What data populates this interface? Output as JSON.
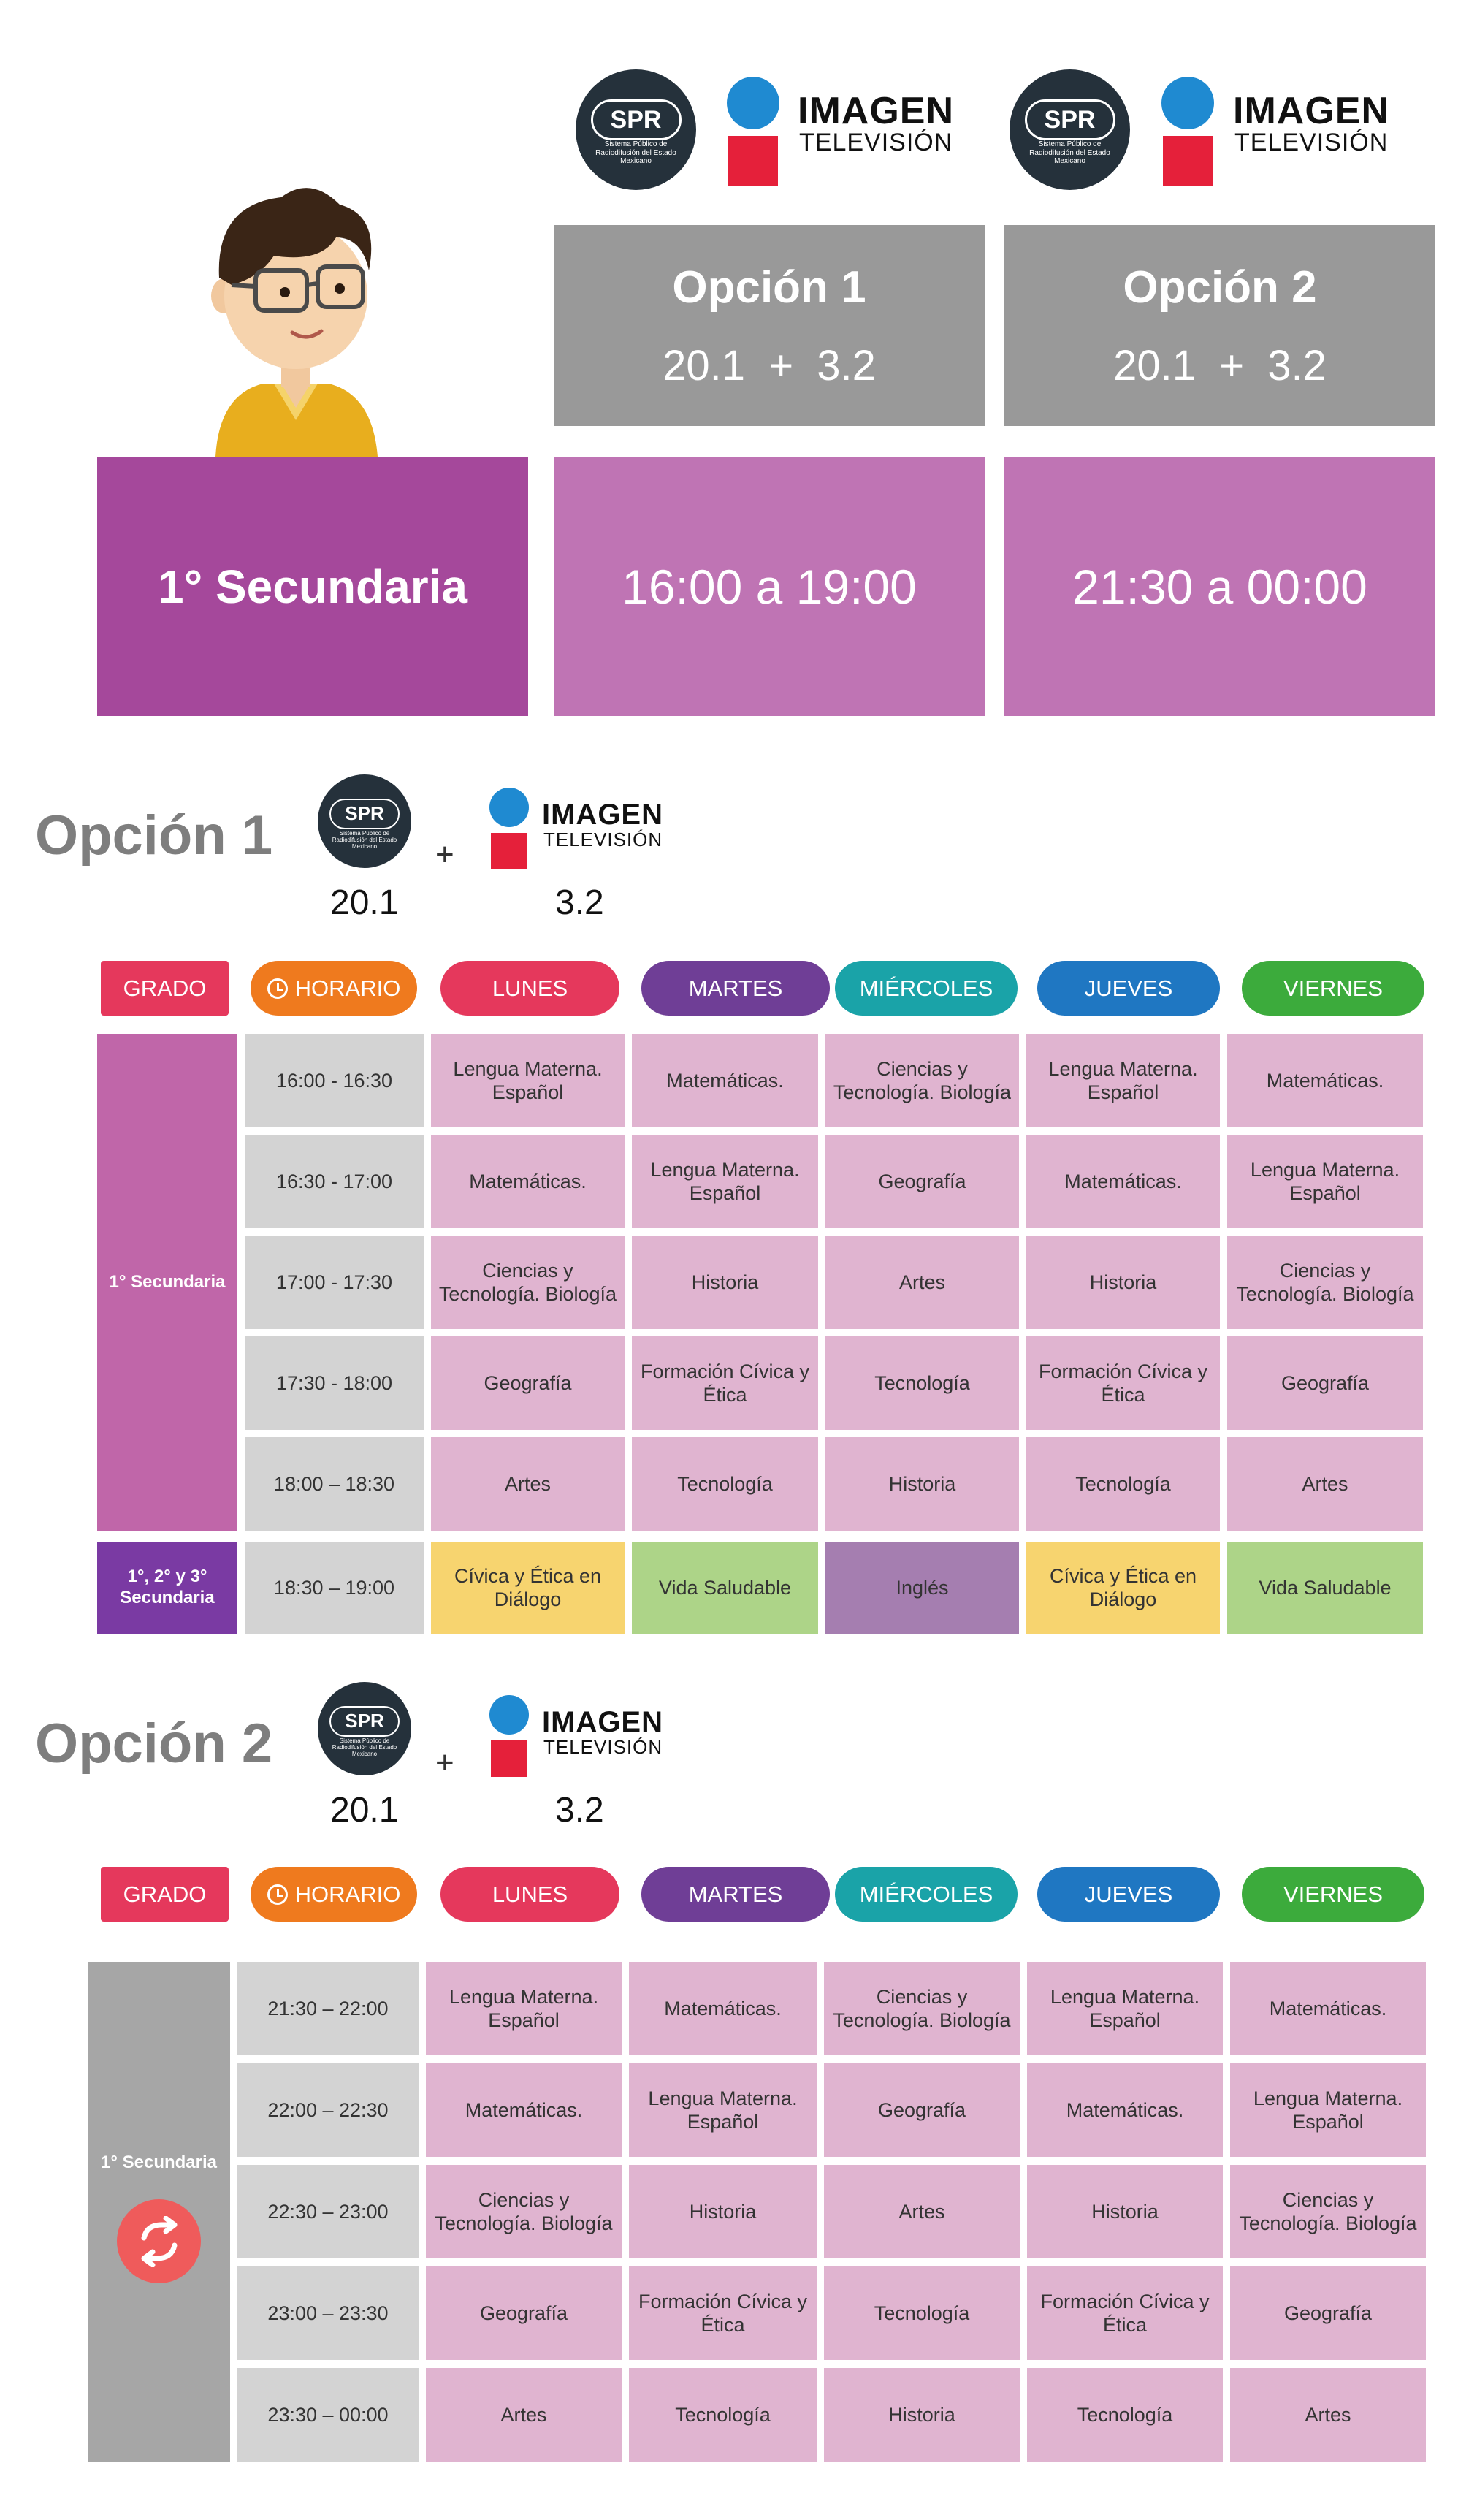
{
  "header": {
    "logos": {
      "spr": {
        "letters": "SPR",
        "subtitle": "Sistema Público de Radiodifusión del Estado Mexicano"
      },
      "imagen": {
        "title": "IMAGEN",
        "subtitle": "TELEVISIÓN"
      }
    },
    "options": [
      {
        "label": "Opción 1",
        "channels": "20.1  +  3.2",
        "time": "16:00 a 19:00"
      },
      {
        "label": "Opción 2",
        "channels": "20.1  +  3.2",
        "time": "21:30 a 00:00"
      }
    ],
    "grade": "1° Secundaria"
  },
  "labels": {
    "grado": "GRADO",
    "horario": "HORARIO",
    "plus": "+"
  },
  "days": [
    "LUNES",
    "MARTES",
    "MIÉRCOLES",
    "JUEVES",
    "VIERNES"
  ],
  "colors": {
    "grado": "#e5385c",
    "horario": "#ef7a1e",
    "days": [
      "#e5385c",
      "#6f3e96",
      "#1aa3a8",
      "#1f77c2",
      "#3cab3c"
    ]
  },
  "option1": {
    "title": "Opción 1",
    "channel_a": "20.1",
    "channel_b": "3.2",
    "grade_label": "1° Secundaria",
    "rows": [
      {
        "time": "16:00 - 16:30",
        "cells": [
          "Lengua Materna. Español",
          "Matemáticas.",
          "Ciencias y Tecnología. Biología",
          "Lengua Materna. Español",
          "Matemáticas."
        ]
      },
      {
        "time": "16:30 - 17:00",
        "cells": [
          "Matemáticas.",
          "Lengua Materna. Español",
          "Geografía",
          "Matemáticas.",
          "Lengua Materna. Español"
        ]
      },
      {
        "time": "17:00 - 17:30",
        "cells": [
          "Ciencias y Tecnología. Biología",
          "Historia",
          "Artes",
          "Historia",
          "Ciencias y Tecnología. Biología"
        ]
      },
      {
        "time": "17:30 - 18:00",
        "cells": [
          "Geografía",
          "Formación Cívica y Ética",
          "Tecnología",
          "Formación Cívica y Ética",
          "Geografía"
        ]
      },
      {
        "time": "18:00 – 18:30",
        "cells": [
          "Artes",
          "Tecnología",
          "Historia",
          "Tecnología",
          "Artes"
        ]
      }
    ],
    "extra_row": {
      "grade_label": "1°, 2° y 3° Secundaria",
      "time": "18:30 – 19:00",
      "cells": [
        "Cívica y Ética en Diálogo",
        "Vida Saludable",
        "Inglés",
        "Cívica y Ética en Diálogo",
        "Vida Saludable"
      ]
    }
  },
  "option2": {
    "title": "Opción 2",
    "channel_a": "20.1",
    "channel_b": "3.2",
    "grade_label": "1° Secundaria",
    "rows": [
      {
        "time": "21:30 – 22:00",
        "cells": [
          "Lengua Materna. Español",
          "Matemáticas.",
          "Ciencias y Tecnología. Biología",
          "Lengua Materna. Español",
          "Matemáticas."
        ]
      },
      {
        "time": "22:00 – 22:30",
        "cells": [
          "Matemáticas.",
          "Lengua Materna. Español",
          "Geografía",
          "Matemáticas.",
          "Lengua Materna. Español"
        ]
      },
      {
        "time": "22:30 – 23:00",
        "cells": [
          "Ciencias y Tecnología. Biología",
          "Historia",
          "Artes",
          "Historia",
          "Ciencias y Tecnología. Biología"
        ]
      },
      {
        "time": "23:00 – 23:30",
        "cells": [
          "Geografía",
          "Formación Cívica y Ética",
          "Tecnología",
          "Formación Cívica y Ética",
          "Geografía"
        ]
      },
      {
        "time": "23:30 – 00:00",
        "cells": [
          "Artes",
          "Tecnología",
          "Historia",
          "Tecnología",
          "Artes"
        ]
      }
    ]
  }
}
